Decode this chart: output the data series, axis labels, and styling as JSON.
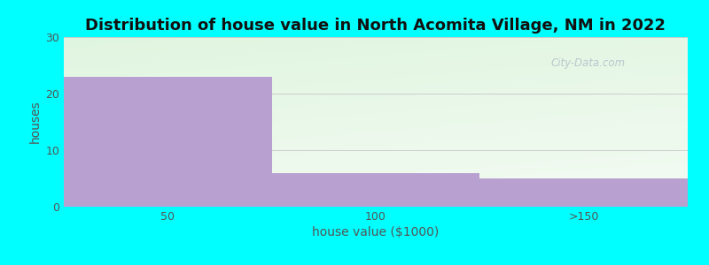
{
  "title": "Distribution of house value in North Acomita Village, NM in 2022",
  "xlabel": "house value ($1000)",
  "ylabel": "houses",
  "categories": [
    "50",
    "100",
    ">150"
  ],
  "values": [
    23,
    6,
    5
  ],
  "bar_color": "#b8a0d0",
  "background_color": "#00ffff",
  "ylim": [
    0,
    30
  ],
  "yticks": [
    0,
    10,
    20,
    30
  ],
  "bar_width": 1.0,
  "title_fontsize": 13,
  "axis_label_fontsize": 10,
  "tick_fontsize": 9,
  "grid_color": "#cccccc",
  "watermark_text": "City-Data.com",
  "watermark_color": "#b0bfc8",
  "plot_bg_color_top": "#e6f5e6",
  "plot_bg_color_bottom": "#f5fff5"
}
